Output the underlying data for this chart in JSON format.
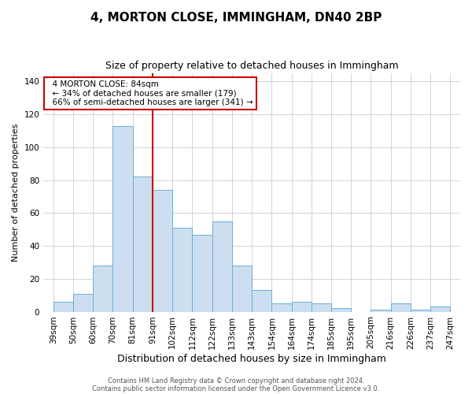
{
  "title": "4, MORTON CLOSE, IMMINGHAM, DN40 2BP",
  "subtitle": "Size of property relative to detached houses in Immingham",
  "xlabel": "Distribution of detached houses by size in Immingham",
  "ylabel": "Number of detached properties",
  "bar_categories": [
    "39sqm",
    "50sqm",
    "60sqm",
    "70sqm",
    "81sqm",
    "91sqm",
    "102sqm",
    "112sqm",
    "122sqm",
    "133sqm",
    "143sqm",
    "154sqm",
    "164sqm",
    "174sqm",
    "185sqm",
    "195sqm",
    "205sqm",
    "216sqm",
    "226sqm",
    "237sqm",
    "247sqm"
  ],
  "bar_values": [
    6,
    11,
    28,
    113,
    82,
    74,
    51,
    47,
    55,
    28,
    13,
    5,
    6,
    5,
    2,
    0,
    1,
    5,
    1,
    3,
    0
  ],
  "bar_color": "#ccdff0",
  "bar_edge_color": "#6aaed6",
  "vline_color": "#cc0000",
  "vline_x_index": 5,
  "ylim": [
    0,
    145
  ],
  "yticks": [
    0,
    20,
    40,
    60,
    80,
    100,
    120,
    140
  ],
  "annotation_title": "4 MORTON CLOSE: 84sqm",
  "annotation_line1": "← 34% of detached houses are smaller (179)",
  "annotation_line2": "66% of semi-detached houses are larger (341) →",
  "annotation_box_facecolor": "#ffffff",
  "annotation_box_edgecolor": "#cc0000",
  "footer1": "Contains HM Land Registry data © Crown copyright and database right 2024.",
  "footer2": "Contains public sector information licensed under the Open Government Licence v3.0.",
  "background_color": "#ffffff",
  "grid_color": "#cccccc",
  "title_fontsize": 11,
  "subtitle_fontsize": 9,
  "ylabel_fontsize": 8,
  "xlabel_fontsize": 9,
  "tick_fontsize": 7.5,
  "footer_fontsize": 6
}
